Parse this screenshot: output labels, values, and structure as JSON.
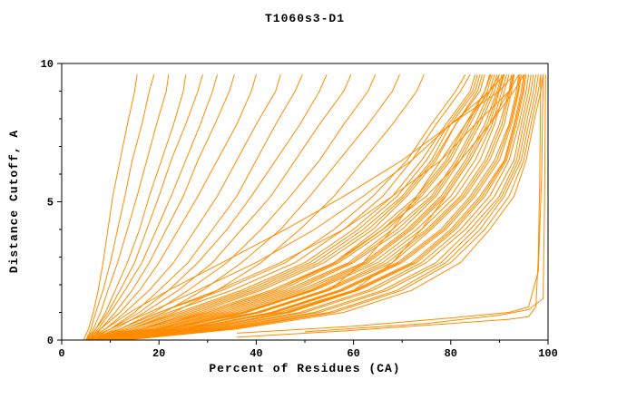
{
  "chart_data": {
    "type": "line",
    "title": "T1060s3-D1",
    "xlabel": "Percent of Residues (CA)",
    "ylabel": "Distance Cutoff, A",
    "xlim": [
      0,
      100
    ],
    "ylim": [
      0,
      10
    ],
    "x_ticks": [
      0,
      20,
      40,
      60,
      80,
      100
    ],
    "y_ticks": [
      0,
      5,
      10
    ],
    "x_minor_step": 10,
    "y_minor_step": 1,
    "line_color": "#ff8c00",
    "axis_color": "#000000",
    "legend": "none",
    "grid": false,
    "y_levels": [
      0,
      0.4,
      1,
      1.8,
      2.8,
      4,
      5.2,
      6.5,
      7.8,
      9,
      9.6
    ],
    "curves": [
      [
        4.5,
        5.5,
        6.5,
        7.5,
        8.5,
        9.5,
        10.5,
        12,
        13.5,
        15,
        15.5
      ],
      [
        5,
        6,
        7,
        8.5,
        10,
        11.5,
        13,
        14.5,
        16.5,
        18,
        19
      ],
      [
        5,
        6.5,
        8,
        9.5,
        11.5,
        13.5,
        15.5,
        17.5,
        19.5,
        21.5,
        22
      ],
      [
        5.5,
        7,
        9,
        11,
        13.5,
        16,
        18,
        20.5,
        23,
        25,
        25.5
      ],
      [
        5,
        7,
        9.5,
        12,
        15,
        17.5,
        20,
        22.5,
        25.5,
        28,
        29
      ],
      [
        5.5,
        7.5,
        10,
        13,
        16.5,
        19.5,
        22.5,
        25.5,
        28.5,
        31,
        32
      ],
      [
        6,
        8,
        11,
        14.5,
        18,
        21.5,
        25,
        28,
        31.5,
        34.5,
        35.5
      ],
      [
        5,
        8,
        12,
        16,
        20,
        24,
        28,
        32,
        36,
        39,
        40
      ],
      [
        5.5,
        9,
        13,
        18,
        23,
        27.5,
        32,
        36,
        40,
        44,
        45
      ],
      [
        6,
        10,
        15,
        20,
        26,
        31,
        36,
        40,
        44,
        48,
        49.5
      ],
      [
        5,
        10,
        16,
        22,
        28,
        34,
        39,
        44,
        49,
        53,
        54.5
      ],
      [
        6,
        11,
        17,
        24,
        31,
        37,
        43,
        48,
        53,
        58,
        59.5
      ],
      [
        6.5,
        12,
        19,
        26,
        34,
        41,
        47,
        53,
        58,
        63,
        64.5
      ],
      [
        7,
        13,
        21,
        29,
        37,
        45,
        51,
        57,
        63,
        68,
        69.5
      ],
      [
        7,
        14,
        23,
        32,
        41,
        49,
        56,
        62,
        68,
        73,
        74.5
      ],
      [
        5,
        13,
        22,
        35,
        48,
        58,
        66,
        72,
        77,
        82,
        84
      ],
      [
        5.5,
        14,
        24,
        37,
        50,
        60,
        68,
        74,
        79,
        84,
        85
      ],
      [
        6,
        15,
        26,
        39,
        52,
        62,
        70,
        76,
        80,
        85,
        86
      ],
      [
        6,
        16,
        28,
        41,
        54,
        64,
        71,
        77,
        81,
        86,
        87
      ],
      [
        6.5,
        17,
        29,
        43,
        56,
        65,
        73,
        79,
        83,
        87,
        88
      ],
      [
        7,
        18,
        31,
        45,
        57,
        67,
        74,
        80,
        84,
        87.5,
        88.5
      ],
      [
        7,
        19,
        32,
        46,
        59,
        68,
        76,
        81,
        85,
        88,
        89
      ],
      [
        7.5,
        20,
        34,
        48,
        60,
        70,
        77,
        82,
        86,
        89,
        90
      ],
      [
        8,
        21,
        35,
        49,
        62,
        71,
        78,
        83,
        87,
        89.5,
        90.5
      ],
      [
        8,
        22,
        37,
        51,
        63,
        72,
        79,
        84,
        88,
        90,
        91
      ],
      [
        8.5,
        23,
        38,
        52,
        65,
        74,
        81,
        86,
        89,
        91,
        92
      ],
      [
        9,
        24,
        40,
        54,
        66,
        75,
        82,
        87,
        90,
        92,
        92.5
      ],
      [
        9,
        25,
        41,
        55,
        68,
        76,
        83,
        88,
        91,
        92.5,
        93
      ],
      [
        9.5,
        26,
        43,
        57,
        69,
        78,
        84,
        89,
        92,
        93.5,
        94
      ],
      [
        10,
        27,
        44,
        58,
        70,
        79,
        85,
        90,
        92.5,
        94,
        94.5
      ],
      [
        10,
        28,
        46,
        60,
        72,
        80,
        86,
        91,
        93,
        94.5,
        95
      ],
      [
        10.5,
        29,
        47,
        61,
        73,
        81,
        87,
        91.5,
        93.5,
        95,
        95.5
      ],
      [
        11,
        30,
        49,
        63,
        74,
        82,
        88,
        92,
        94,
        95.5,
        96
      ],
      [
        11,
        31,
        50,
        64,
        75,
        83,
        89,
        93,
        94.5,
        96,
        96.5
      ],
      [
        11.5,
        32,
        52,
        66,
        77,
        84,
        90,
        93.5,
        95,
        96.5,
        97
      ],
      [
        12,
        33,
        53,
        67,
        78,
        85,
        90.5,
        94,
        95.5,
        97,
        97.5
      ],
      [
        12,
        34,
        55,
        69,
        79,
        86,
        91,
        94.5,
        96,
        97.5,
        98
      ],
      [
        12.5,
        35,
        56,
        70,
        80,
        87,
        92,
        95,
        96.5,
        98,
        98.5
      ],
      [
        13,
        36,
        58,
        72,
        82,
        88,
        93,
        95.5,
        97,
        98.5,
        99
      ],
      [
        5,
        12,
        20,
        33,
        46,
        56,
        64,
        71,
        76,
        81,
        83
      ],
      [
        6,
        14,
        25,
        38,
        51,
        61,
        69,
        75,
        79.5,
        84.5,
        85.5
      ],
      [
        6.5,
        16,
        27,
        40,
        53,
        63,
        70.5,
        76.5,
        81,
        85.5,
        86.5
      ],
      [
        7,
        18,
        30,
        44,
        56.5,
        66,
        73.5,
        79.5,
        83.5,
        87,
        88.2
      ],
      [
        7.5,
        19.5,
        33,
        47,
        59.5,
        69,
        76.5,
        81.5,
        85.5,
        88.5,
        89.5
      ],
      [
        8,
        21,
        36,
        50,
        62.5,
        71.5,
        78.5,
        83.5,
        87.5,
        89.8,
        90.8
      ],
      [
        8.5,
        22.5,
        37.5,
        51.5,
        64,
        73,
        80,
        85,
        88.5,
        90.5,
        91.5
      ],
      [
        9,
        24.5,
        40.5,
        54.5,
        67,
        75.5,
        82.5,
        87.5,
        90.5,
        92.2,
        92.8
      ],
      [
        9.5,
        26.5,
        43.5,
        57.5,
        69.5,
        78.5,
        84.5,
        89.5,
        92.2,
        93.8,
        94.2
      ],
      [
        10.5,
        28.5,
        46.5,
        60.5,
        72.5,
        80.5,
        86.5,
        91.2,
        93.2,
        94.8,
        95.2
      ],
      [
        6,
        20,
        40,
        55,
        62,
        68,
        73,
        78,
        83,
        88,
        90
      ],
      [
        7,
        25,
        45,
        60,
        68,
        74,
        79,
        84,
        88,
        92,
        93
      ],
      [
        5,
        10,
        18,
        28,
        40,
        52,
        62,
        72,
        80,
        88,
        91
      ],
      [
        6,
        12,
        20,
        32,
        45,
        58,
        68,
        78,
        85,
        92,
        94
      ],
      [
        8,
        16,
        30,
        44,
        56,
        66,
        75,
        82,
        88,
        93,
        95
      ],
      [
        5,
        9,
        14,
        22,
        33,
        46,
        58,
        70,
        80,
        90,
        93
      ]
    ],
    "extra_curves": [
      [
        [
          36,
          0.1
        ],
        [
          60,
          0.35
        ],
        [
          80,
          0.6
        ],
        [
          92,
          0.75
        ],
        [
          96,
          0.85
        ],
        [
          97.5,
          1.2
        ],
        [
          98,
          3
        ],
        [
          98.3,
          6
        ],
        [
          98.5,
          9.6
        ]
      ],
      [
        [
          36,
          0.25
        ],
        [
          60,
          0.5
        ],
        [
          80,
          0.8
        ],
        [
          92,
          1.0
        ],
        [
          96,
          1.2
        ],
        [
          98,
          2.5
        ],
        [
          98.7,
          6
        ],
        [
          99,
          9.6
        ]
      ],
      [
        [
          50,
          0.3
        ],
        [
          75,
          0.6
        ],
        [
          90,
          0.9
        ],
        [
          96,
          1.1
        ],
        [
          99,
          1.5
        ],
        [
          99.3,
          5
        ],
        [
          99.5,
          9.6
        ]
      ]
    ]
  }
}
